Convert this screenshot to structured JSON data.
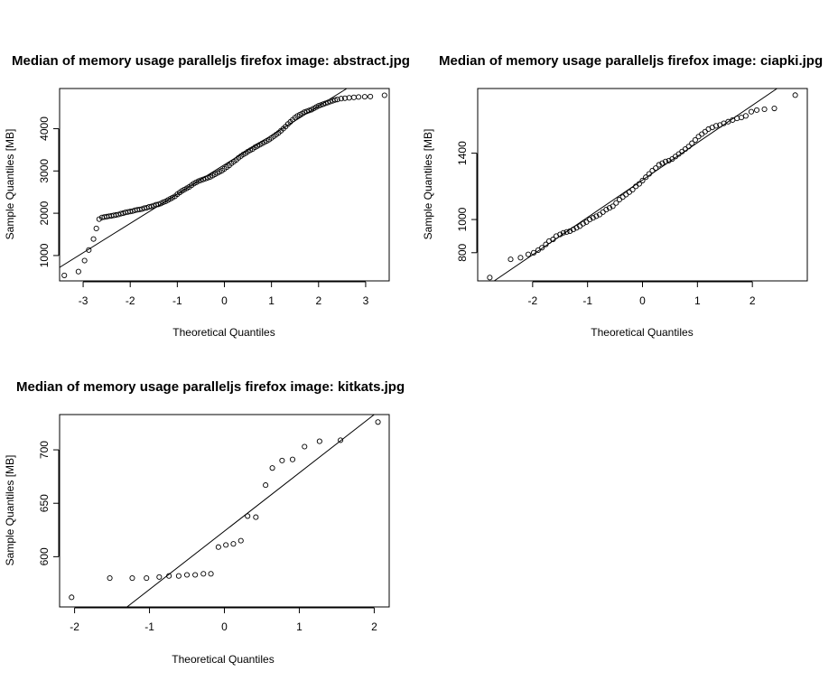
{
  "chart_data": [
    {
      "type": "scatter",
      "title": "Median of memory usage paralleljs firefox image:  abstract.jpg",
      "xlabel": "Theoretical Quantiles",
      "ylabel": "Sample Quantiles [MB]",
      "xlim": [
        -3.5,
        3.5
      ],
      "ylim": [
        400,
        4950
      ],
      "xticks": [
        -3,
        -2,
        -1,
        0,
        1,
        2,
        3
      ],
      "yticks": [
        1000,
        2000,
        3000,
        4000
      ],
      "ref_line": [
        [
          -3.6,
          650
        ],
        [
          2.6,
          4950
        ]
      ],
      "points": [
        [
          -3.4,
          530
        ],
        [
          -3.1,
          620
        ],
        [
          -2.97,
          880
        ],
        [
          -2.88,
          1130
        ],
        [
          -2.78,
          1390
        ],
        [
          -2.72,
          1640
        ],
        [
          -2.66,
          1860
        ],
        [
          -2.6,
          1900
        ],
        [
          -2.55,
          1910
        ],
        [
          -2.5,
          1920
        ],
        [
          -2.45,
          1930
        ],
        [
          -2.4,
          1940
        ],
        [
          -2.35,
          1950
        ],
        [
          -2.3,
          1960
        ],
        [
          -2.25,
          1970
        ],
        [
          -2.2,
          1990
        ],
        [
          -2.15,
          2000
        ],
        [
          -2.1,
          2020
        ],
        [
          -2.05,
          2030
        ],
        [
          -2.0,
          2040
        ],
        [
          -1.95,
          2050
        ],
        [
          -1.9,
          2070
        ],
        [
          -1.85,
          2080
        ],
        [
          -1.8,
          2090
        ],
        [
          -1.75,
          2100
        ],
        [
          -1.7,
          2120
        ],
        [
          -1.65,
          2130
        ],
        [
          -1.6,
          2150
        ],
        [
          -1.55,
          2160
        ],
        [
          -1.5,
          2180
        ],
        [
          -1.45,
          2200
        ],
        [
          -1.4,
          2210
        ],
        [
          -1.35,
          2230
        ],
        [
          -1.3,
          2260
        ],
        [
          -1.25,
          2280
        ],
        [
          -1.2,
          2310
        ],
        [
          -1.15,
          2340
        ],
        [
          -1.1,
          2370
        ],
        [
          -1.05,
          2400
        ],
        [
          -1.0,
          2450
        ],
        [
          -0.95,
          2490
        ],
        [
          -0.9,
          2530
        ],
        [
          -0.85,
          2560
        ],
        [
          -0.8,
          2590
        ],
        [
          -0.75,
          2620
        ],
        [
          -0.7,
          2660
        ],
        [
          -0.65,
          2700
        ],
        [
          -0.6,
          2730
        ],
        [
          -0.55,
          2760
        ],
        [
          -0.5,
          2780
        ],
        [
          -0.45,
          2800
        ],
        [
          -0.4,
          2820
        ],
        [
          -0.35,
          2840
        ],
        [
          -0.3,
          2860
        ],
        [
          -0.25,
          2890
        ],
        [
          -0.2,
          2920
        ],
        [
          -0.15,
          2950
        ],
        [
          -0.1,
          2980
        ],
        [
          -0.05,
          3010
        ],
        [
          0.0,
          3050
        ],
        [
          0.05,
          3090
        ],
        [
          0.1,
          3130
        ],
        [
          0.15,
          3180
        ],
        [
          0.2,
          3220
        ],
        [
          0.25,
          3260
        ],
        [
          0.3,
          3310
        ],
        [
          0.35,
          3350
        ],
        [
          0.4,
          3390
        ],
        [
          0.45,
          3420
        ],
        [
          0.5,
          3460
        ],
        [
          0.55,
          3490
        ],
        [
          0.6,
          3520
        ],
        [
          0.65,
          3560
        ],
        [
          0.7,
          3590
        ],
        [
          0.75,
          3620
        ],
        [
          0.8,
          3650
        ],
        [
          0.85,
          3680
        ],
        [
          0.9,
          3710
        ],
        [
          0.95,
          3740
        ],
        [
          1.0,
          3780
        ],
        [
          1.05,
          3820
        ],
        [
          1.1,
          3860
        ],
        [
          1.15,
          3900
        ],
        [
          1.2,
          3950
        ],
        [
          1.25,
          4000
        ],
        [
          1.3,
          4050
        ],
        [
          1.35,
          4110
        ],
        [
          1.4,
          4160
        ],
        [
          1.45,
          4210
        ],
        [
          1.5,
          4260
        ],
        [
          1.55,
          4300
        ],
        [
          1.6,
          4330
        ],
        [
          1.65,
          4360
        ],
        [
          1.7,
          4390
        ],
        [
          1.75,
          4410
        ],
        [
          1.8,
          4430
        ],
        [
          1.85,
          4450
        ],
        [
          1.9,
          4480
        ],
        [
          1.95,
          4510
        ],
        [
          2.0,
          4540
        ],
        [
          2.05,
          4560
        ],
        [
          2.1,
          4580
        ],
        [
          2.15,
          4600
        ],
        [
          2.2,
          4620
        ],
        [
          2.25,
          4640
        ],
        [
          2.3,
          4660
        ],
        [
          2.35,
          4680
        ],
        [
          2.4,
          4690
        ],
        [
          2.48,
          4710
        ],
        [
          2.56,
          4720
        ],
        [
          2.65,
          4730
        ],
        [
          2.75,
          4740
        ],
        [
          2.85,
          4750
        ],
        [
          2.98,
          4755
        ],
        [
          3.1,
          4760
        ],
        [
          3.4,
          4790
        ]
      ]
    },
    {
      "type": "scatter",
      "title": "Median of memory usage paralleljs firefox image:  ciapki.jpg",
      "xlabel": "Theoretical Quantiles",
      "ylabel": "Sample Quantiles [MB]",
      "xlim": [
        -3.0,
        3.0
      ],
      "ylim": [
        630,
        1790
      ],
      "xticks": [
        -2,
        -1,
        0,
        1,
        2
      ],
      "yticks": [
        800,
        1000,
        1400
      ],
      "ref_line": [
        [
          -2.7,
          630
        ],
        [
          2.45,
          1790
        ]
      ],
      "points": [
        [
          -2.78,
          650
        ],
        [
          -2.4,
          760
        ],
        [
          -2.22,
          770
        ],
        [
          -2.08,
          790
        ],
        [
          -1.98,
          800
        ],
        [
          -1.9,
          815
        ],
        [
          -1.83,
          830
        ],
        [
          -1.76,
          850
        ],
        [
          -1.7,
          870
        ],
        [
          -1.63,
          880
        ],
        [
          -1.57,
          900
        ],
        [
          -1.5,
          910
        ],
        [
          -1.44,
          920
        ],
        [
          -1.38,
          925
        ],
        [
          -1.32,
          930
        ],
        [
          -1.26,
          940
        ],
        [
          -1.2,
          950
        ],
        [
          -1.14,
          960
        ],
        [
          -1.08,
          975
        ],
        [
          -1.02,
          985
        ],
        [
          -0.96,
          1000
        ],
        [
          -0.9,
          1010
        ],
        [
          -0.84,
          1020
        ],
        [
          -0.78,
          1030
        ],
        [
          -0.72,
          1045
        ],
        [
          -0.66,
          1060
        ],
        [
          -0.6,
          1070
        ],
        [
          -0.54,
          1080
        ],
        [
          -0.48,
          1100
        ],
        [
          -0.42,
          1120
        ],
        [
          -0.36,
          1135
        ],
        [
          -0.3,
          1150
        ],
        [
          -0.24,
          1165
        ],
        [
          -0.18,
          1180
        ],
        [
          -0.12,
          1200
        ],
        [
          -0.06,
          1215
        ],
        [
          0.0,
          1235
        ],
        [
          0.06,
          1255
        ],
        [
          0.12,
          1275
        ],
        [
          0.18,
          1295
        ],
        [
          0.24,
          1310
        ],
        [
          0.3,
          1330
        ],
        [
          0.36,
          1340
        ],
        [
          0.42,
          1350
        ],
        [
          0.48,
          1355
        ],
        [
          0.54,
          1365
        ],
        [
          0.6,
          1380
        ],
        [
          0.66,
          1395
        ],
        [
          0.72,
          1410
        ],
        [
          0.78,
          1425
        ],
        [
          0.84,
          1440
        ],
        [
          0.9,
          1460
        ],
        [
          0.96,
          1480
        ],
        [
          1.02,
          1500
        ],
        [
          1.08,
          1515
        ],
        [
          1.14,
          1530
        ],
        [
          1.2,
          1545
        ],
        [
          1.27,
          1555
        ],
        [
          1.34,
          1565
        ],
        [
          1.41,
          1570
        ],
        [
          1.48,
          1580
        ],
        [
          1.56,
          1590
        ],
        [
          1.64,
          1600
        ],
        [
          1.72,
          1610
        ],
        [
          1.8,
          1615
        ],
        [
          1.88,
          1625
        ],
        [
          1.98,
          1650
        ],
        [
          2.08,
          1660
        ],
        [
          2.22,
          1665
        ],
        [
          2.4,
          1670
        ],
        [
          2.78,
          1750
        ]
      ]
    },
    {
      "type": "scatter",
      "title": "Median of memory usage paralleljs firefox image:  kitkats.jpg",
      "xlabel": "Theoretical Quantiles",
      "ylabel": "Sample Quantiles [MB]",
      "xlim": [
        -2.2,
        2.2
      ],
      "ylim": [
        553,
        733
      ],
      "xticks": [
        -2,
        -1,
        0,
        1,
        2
      ],
      "yticks": [
        600,
        650,
        700
      ],
      "ref_line": [
        [
          -1.3,
          553
        ],
        [
          2.0,
          733
        ]
      ],
      "points": [
        [
          -2.04,
          562
        ],
        [
          -1.53,
          580
        ],
        [
          -1.23,
          580
        ],
        [
          -1.04,
          580
        ],
        [
          -0.87,
          581
        ],
        [
          -0.74,
          582
        ],
        [
          -0.61,
          582
        ],
        [
          -0.5,
          583
        ],
        [
          -0.39,
          583
        ],
        [
          -0.28,
          584
        ],
        [
          -0.18,
          584
        ],
        [
          -0.08,
          609
        ],
        [
          0.02,
          611
        ],
        [
          0.12,
          612
        ],
        [
          0.22,
          615
        ],
        [
          0.31,
          638
        ],
        [
          0.42,
          637
        ],
        [
          0.55,
          667
        ],
        [
          0.64,
          683
        ],
        [
          0.77,
          690
        ],
        [
          0.91,
          691
        ],
        [
          1.07,
          703
        ],
        [
          1.27,
          708
        ],
        [
          1.55,
          709
        ],
        [
          2.05,
          726
        ]
      ]
    }
  ]
}
